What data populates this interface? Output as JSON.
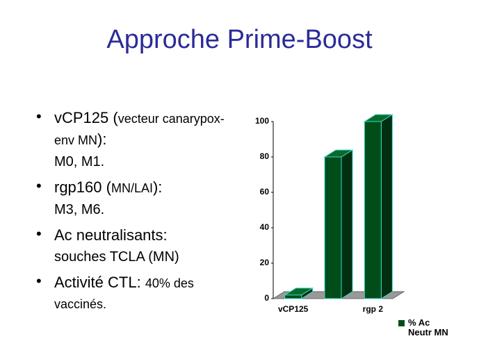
{
  "title": "Approche Prime-Boost",
  "bullets": [
    {
      "parts": [
        "vCP125 (",
        "vecteur canarypox-env MN",
        "):"
      ],
      "sub": "M0, M1."
    },
    {
      "parts": [
        "rgp160 (",
        "MN/LAI",
        "):"
      ],
      "sub": "M3, M6."
    },
    {
      "parts": [
        "Ac neutralisants:"
      ],
      "sub": "souches TCLA (MN)"
    },
    {
      "parts": [
        "Activité CTL: ",
        "40% des vaccinés."
      ]
    }
  ],
  "chart_data": {
    "type": "bar3d",
    "categories": [
      "vCP125",
      null,
      "rgp 2"
    ],
    "series": [
      {
        "name": "% Ac Neutr MN",
        "color": "#004d1a",
        "values": [
          2,
          80,
          100
        ]
      }
    ],
    "ylim": [
      0,
      100
    ],
    "yticks": [
      0,
      20,
      40,
      60,
      80,
      100
    ]
  }
}
